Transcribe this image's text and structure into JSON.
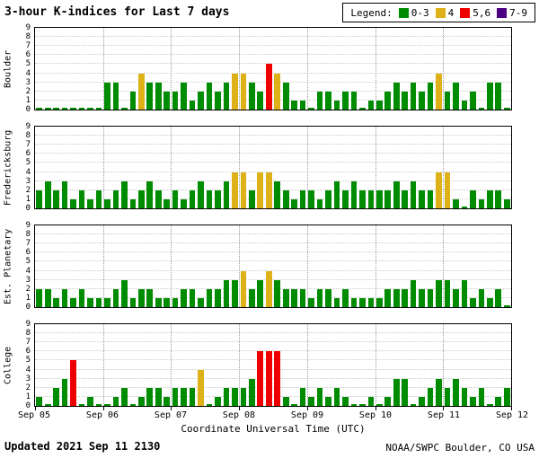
{
  "page": {
    "title": "3-hour K-indices for Last 7 days"
  },
  "legend": {
    "label": "Legend:",
    "items": [
      {
        "label": "0-3",
        "color": "#008C00"
      },
      {
        "label": "4",
        "color": "#DDB117"
      },
      {
        "label": "5,6",
        "color": "#EE0000"
      },
      {
        "label": "7-9",
        "color": "#4B0082"
      }
    ]
  },
  "x_axis": {
    "title": "Coordinate Universal Time (UTC)",
    "tick_labels": [
      "Sep 05",
      "Sep 06",
      "Sep 07",
      "Sep 08",
      "Sep 09",
      "Sep 10",
      "Sep 11",
      "Sep 12"
    ]
  },
  "footer": {
    "updated": "Updated 2021 Sep 11 2130",
    "credit": "NOAA/SWPC Boulder, CO USA"
  },
  "chart_data": {
    "type": "bar",
    "title": "3-hour K-indices for Last 7 days",
    "ylim": [
      0,
      9
    ],
    "bars_per_day": 8,
    "days": 7,
    "x_range": [
      "Sep 05",
      "Sep 12"
    ],
    "color_rules": {
      "0-3": "#008C00",
      "4": "#DDB117",
      "5-6": "#EE0000",
      "7-9": "#4B0082"
    },
    "panels": [
      {
        "station": "Boulder",
        "values": [
          0,
          0,
          0,
          0,
          0,
          0,
          0,
          0,
          3,
          3,
          0,
          2,
          4,
          3,
          3,
          2,
          2,
          3,
          1,
          2,
          3,
          2,
          3,
          4,
          4,
          3,
          2,
          5,
          4,
          3,
          1,
          1,
          0,
          2,
          2,
          1,
          2,
          2,
          0,
          1,
          1,
          2,
          3,
          2,
          3,
          2,
          3,
          4,
          2,
          3,
          1,
          2,
          0,
          3,
          3,
          0
        ]
      },
      {
        "station": "Fredericksburg",
        "values": [
          2,
          3,
          2,
          3,
          1,
          2,
          1,
          2,
          1,
          2,
          3,
          1,
          2,
          3,
          2,
          1,
          2,
          1,
          2,
          3,
          2,
          2,
          3,
          4,
          4,
          2,
          4,
          4,
          3,
          2,
          1,
          2,
          2,
          1,
          2,
          3,
          2,
          3,
          2,
          2,
          2,
          2,
          3,
          2,
          3,
          2,
          2,
          4,
          4,
          1,
          0,
          2,
          1,
          2,
          2,
          1
        ]
      },
      {
        "station": "Est. Planetary",
        "values": [
          2,
          2,
          1,
          2,
          1,
          2,
          1,
          1,
          1,
          2,
          3,
          1,
          2,
          2,
          1,
          1,
          1,
          2,
          2,
          1,
          2,
          2,
          3,
          3,
          4,
          2,
          3,
          4,
          3,
          2,
          2,
          2,
          1,
          2,
          2,
          1,
          2,
          1,
          1,
          1,
          1,
          2,
          2,
          2,
          3,
          2,
          2,
          3,
          3,
          2,
          3,
          1,
          2,
          1,
          2,
          0
        ]
      },
      {
        "station": "College",
        "values": [
          1,
          0,
          2,
          3,
          5,
          0,
          1,
          0,
          0,
          1,
          2,
          0,
          1,
          2,
          2,
          1,
          2,
          2,
          2,
          4,
          0,
          1,
          2,
          2,
          2,
          3,
          6,
          6,
          6,
          1,
          0,
          2,
          1,
          2,
          1,
          2,
          1,
          0,
          0,
          1,
          0,
          1,
          3,
          3,
          0,
          1,
          2,
          3,
          2,
          3,
          2,
          1,
          2,
          0,
          1,
          2
        ]
      }
    ]
  }
}
